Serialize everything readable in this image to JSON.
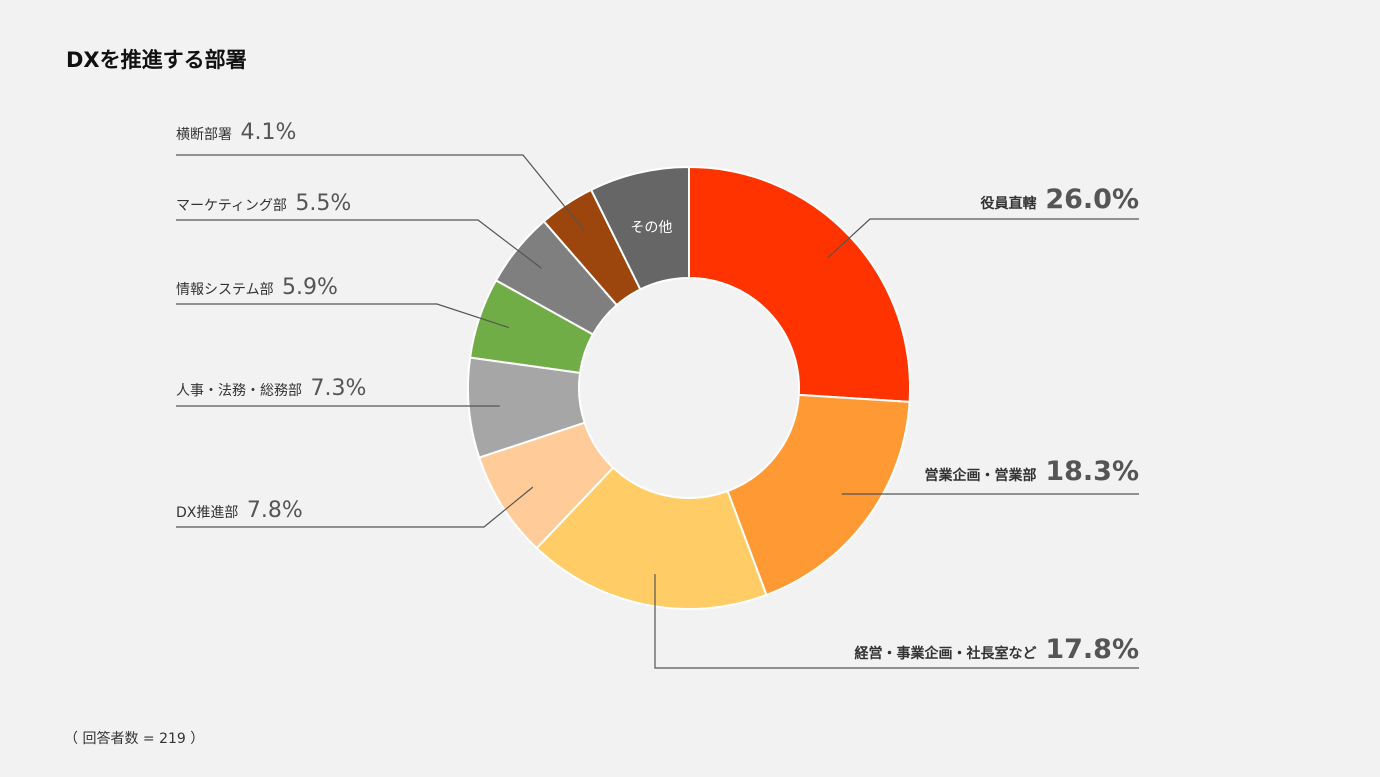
{
  "title": "DXを推進する部署",
  "footnote": "（ 回答者数 = 219 ）",
  "chart_data": {
    "type": "pie",
    "title": "DXを推進する部署",
    "unit": "%",
    "slices": [
      {
        "label": "役員直轄",
        "value": 26.0,
        "value_text": "26.0%",
        "color": "#ff3300"
      },
      {
        "label": "営業企画・営業部",
        "value": 18.3,
        "value_text": "18.3%",
        "color": "#ff9933"
      },
      {
        "label": "経営・事業企画・社長室など",
        "value": 17.8,
        "value_text": "17.8%",
        "color": "#ffcc66"
      },
      {
        "label": "DX推進部",
        "value": 7.8,
        "value_text": "7.8%",
        "color": "#ffcc99"
      },
      {
        "label": "人事・法務・総務部",
        "value": 7.3,
        "value_text": "7.3%",
        "color": "#a6a6a6"
      },
      {
        "label": "情報システム部",
        "value": 5.9,
        "value_text": "5.9%",
        "color": "#70ad47"
      },
      {
        "label": "マーケティング部",
        "value": 5.5,
        "value_text": "5.5%",
        "color": "#7f7f7f"
      },
      {
        "label": "横断部署",
        "value": 4.1,
        "value_text": "4.1%",
        "color": "#9c460d"
      },
      {
        "label": "その他",
        "value": 7.3,
        "value_text": "",
        "color": "#666666"
      }
    ]
  }
}
